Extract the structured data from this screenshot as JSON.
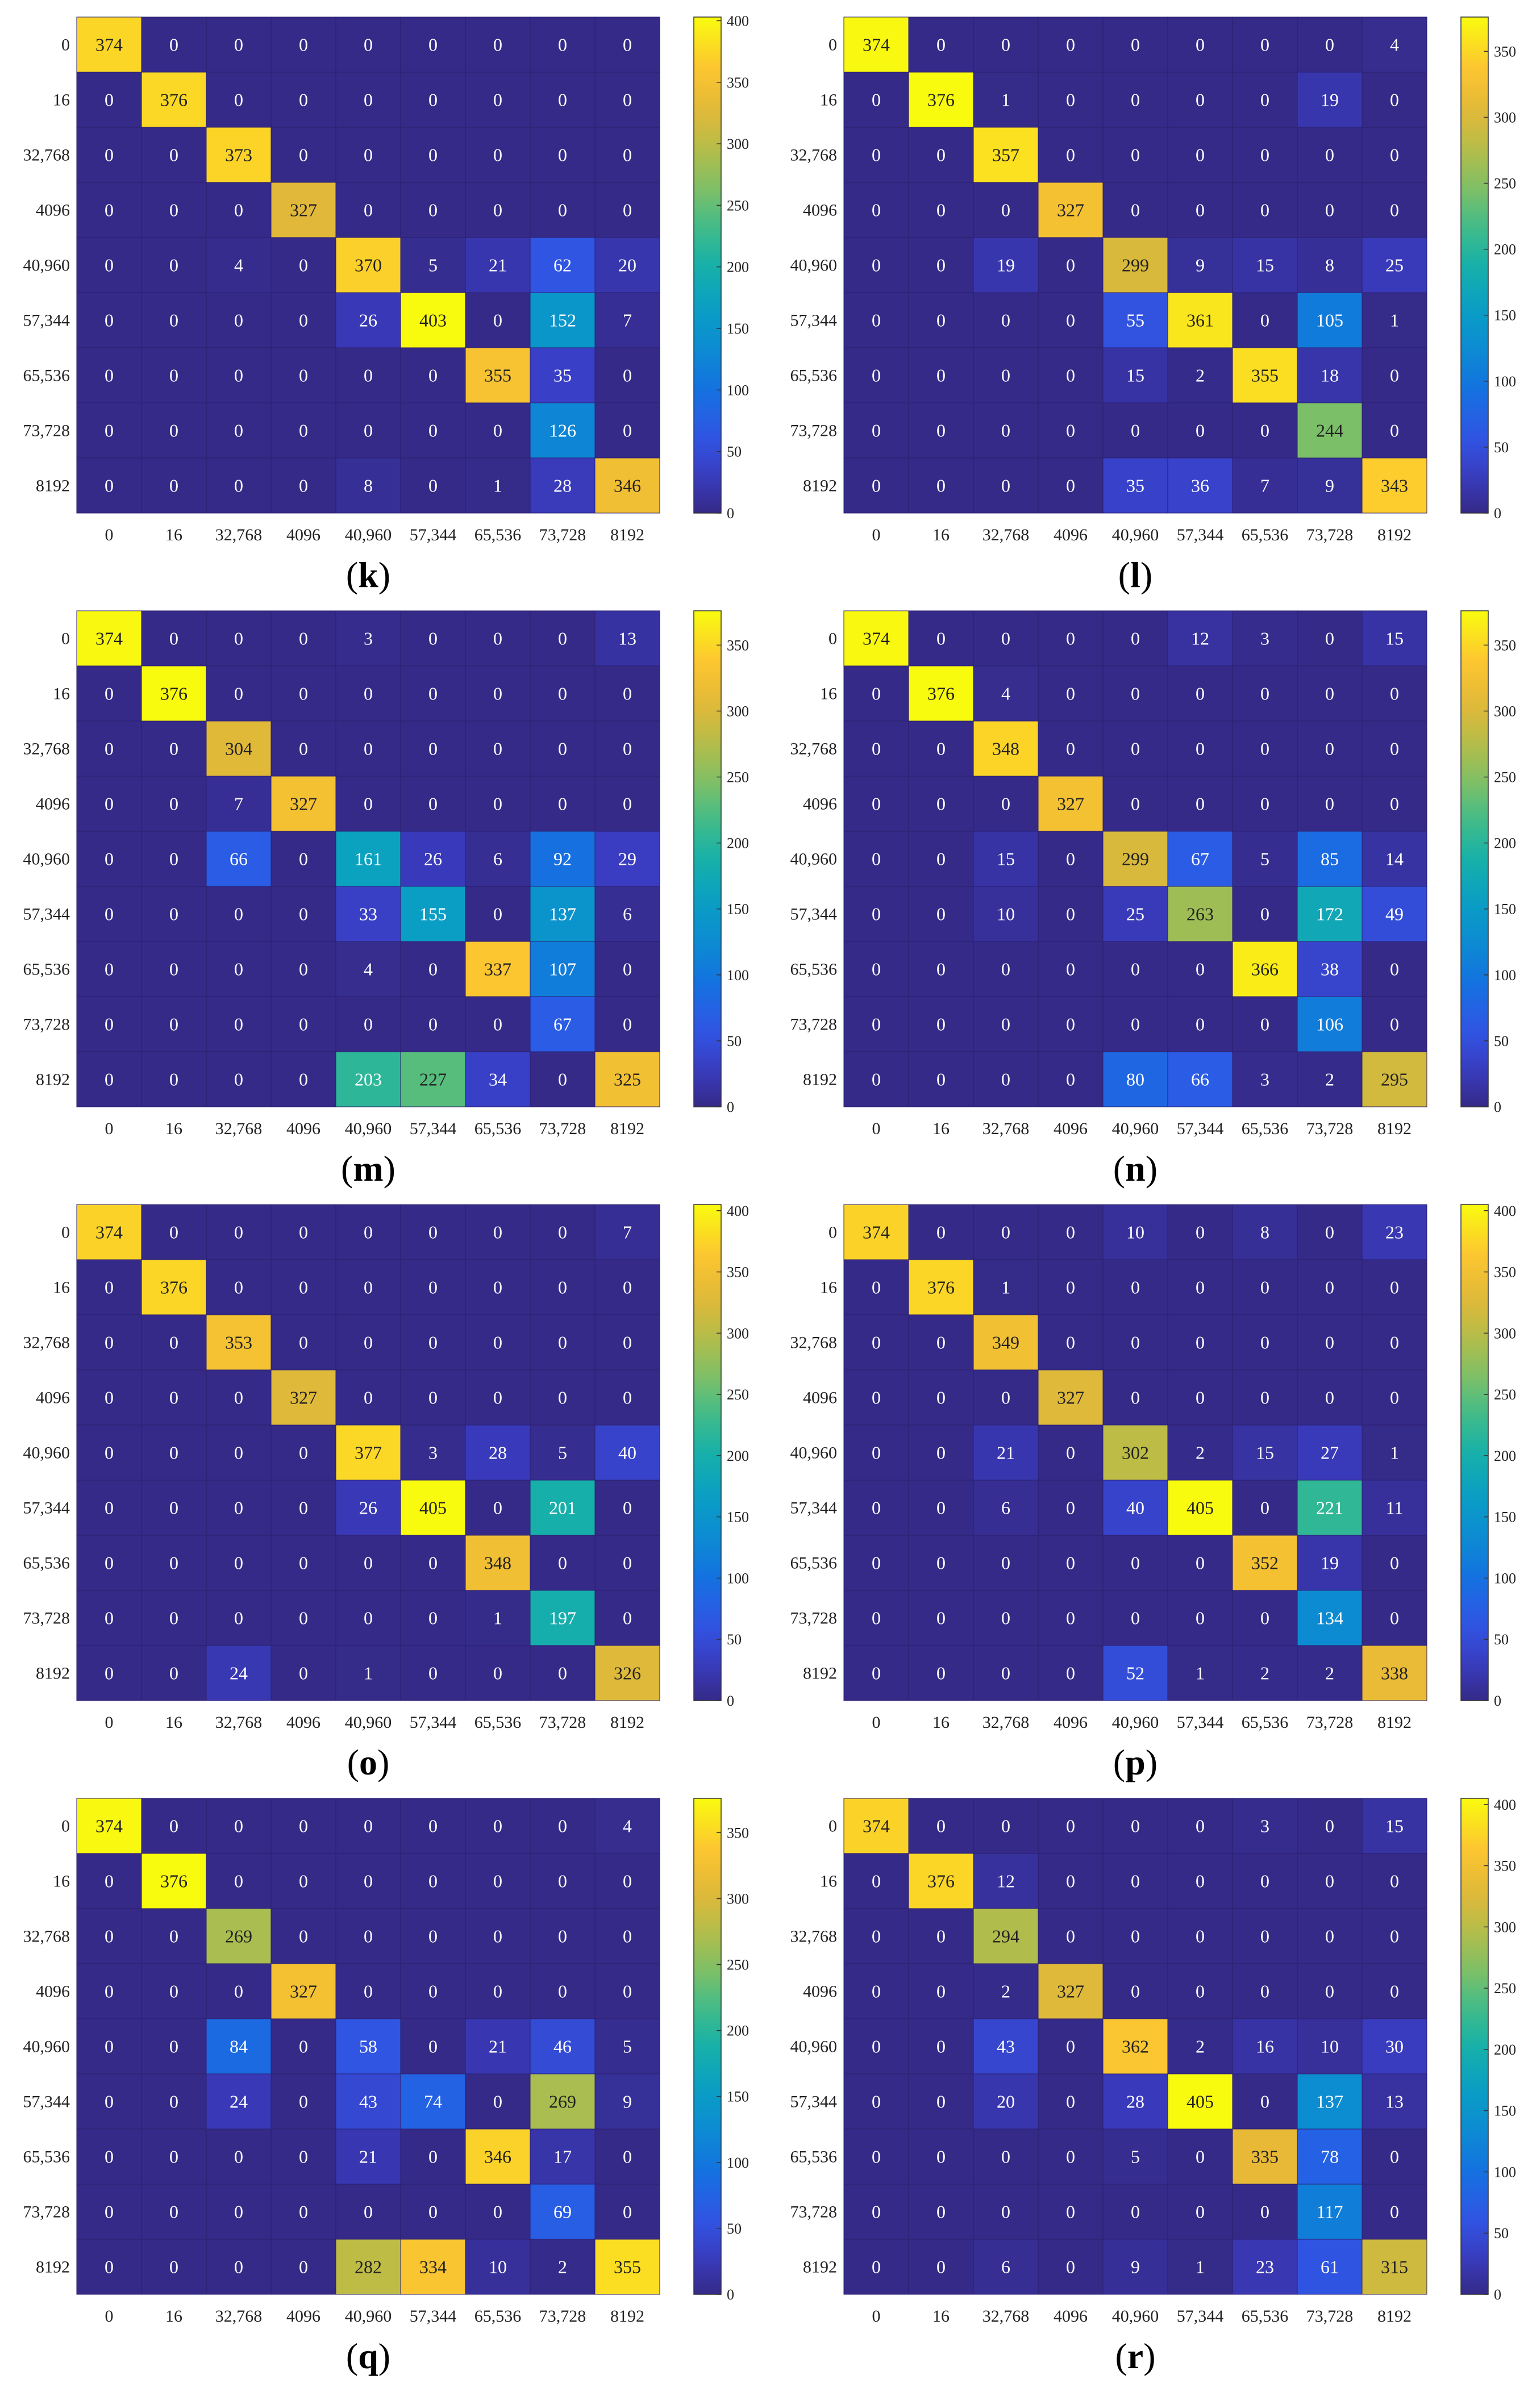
{
  "figure": {
    "panels": [
      "k",
      "l",
      "m",
      "n",
      "o",
      "p",
      "q",
      "r"
    ]
  },
  "chart_data": [
    {
      "type": "heatmap",
      "panel": "k",
      "caption_open": "(",
      "caption_letter": "k",
      "caption_close": ")",
      "row_labels": [
        "0",
        "16",
        "32,768",
        "4096",
        "40,960",
        "57,344",
        "65,536",
        "73,728",
        "8192"
      ],
      "col_labels": [
        "0",
        "16",
        "32,768",
        "4096",
        "40,960",
        "57,344",
        "65,536",
        "73,728",
        "8192"
      ],
      "matrix": [
        [
          374,
          0,
          0,
          0,
          0,
          0,
          0,
          0,
          0
        ],
        [
          0,
          376,
          0,
          0,
          0,
          0,
          0,
          0,
          0
        ],
        [
          0,
          0,
          373,
          0,
          0,
          0,
          0,
          0,
          0
        ],
        [
          0,
          0,
          0,
          327,
          0,
          0,
          0,
          0,
          0
        ],
        [
          0,
          0,
          4,
          0,
          370,
          5,
          21,
          62,
          20
        ],
        [
          0,
          0,
          0,
          0,
          26,
          403,
          0,
          152,
          7
        ],
        [
          0,
          0,
          0,
          0,
          0,
          0,
          355,
          35,
          0
        ],
        [
          0,
          0,
          0,
          0,
          0,
          0,
          0,
          126,
          0
        ],
        [
          0,
          0,
          0,
          0,
          8,
          0,
          1,
          28,
          346
        ]
      ],
      "colorbar_max": 403,
      "colorbar_ticks": [
        0,
        50,
        100,
        150,
        200,
        250,
        300,
        350,
        400
      ]
    },
    {
      "type": "heatmap",
      "panel": "l",
      "caption_open": "(",
      "caption_letter": "l",
      "caption_close": ")",
      "row_labels": [
        "0",
        "16",
        "32,768",
        "4096",
        "40,960",
        "57,344",
        "65,536",
        "73,728",
        "8192"
      ],
      "col_labels": [
        "0",
        "16",
        "32,768",
        "4096",
        "40,960",
        "57,344",
        "65,536",
        "73,728",
        "8192"
      ],
      "matrix": [
        [
          374,
          0,
          0,
          0,
          0,
          0,
          0,
          0,
          4
        ],
        [
          0,
          376,
          1,
          0,
          0,
          0,
          0,
          19,
          0
        ],
        [
          0,
          0,
          357,
          0,
          0,
          0,
          0,
          0,
          0
        ],
        [
          0,
          0,
          0,
          327,
          0,
          0,
          0,
          0,
          0
        ],
        [
          0,
          0,
          19,
          0,
          299,
          9,
          15,
          8,
          25
        ],
        [
          0,
          0,
          0,
          0,
          55,
          361,
          0,
          105,
          1
        ],
        [
          0,
          0,
          0,
          0,
          15,
          2,
          355,
          18,
          0
        ],
        [
          0,
          0,
          0,
          0,
          0,
          0,
          0,
          244,
          0
        ],
        [
          0,
          0,
          0,
          0,
          35,
          36,
          7,
          9,
          343
        ]
      ],
      "colorbar_max": 376,
      "colorbar_ticks": [
        0,
        50,
        100,
        150,
        200,
        250,
        300,
        350
      ]
    },
    {
      "type": "heatmap",
      "panel": "m",
      "caption_open": "(",
      "caption_letter": "m",
      "caption_close": ")",
      "row_labels": [
        "0",
        "16",
        "32,768",
        "4096",
        "40,960",
        "57,344",
        "65,536",
        "73,728",
        "8192"
      ],
      "col_labels": [
        "0",
        "16",
        "32,768",
        "4096",
        "40,960",
        "57,344",
        "65,536",
        "73,728",
        "8192"
      ],
      "matrix": [
        [
          374,
          0,
          0,
          0,
          3,
          0,
          0,
          0,
          13
        ],
        [
          0,
          376,
          0,
          0,
          0,
          0,
          0,
          0,
          0
        ],
        [
          0,
          0,
          304,
          0,
          0,
          0,
          0,
          0,
          0
        ],
        [
          0,
          0,
          7,
          327,
          0,
          0,
          0,
          0,
          0
        ],
        [
          0,
          0,
          66,
          0,
          161,
          26,
          6,
          92,
          29
        ],
        [
          0,
          0,
          0,
          0,
          33,
          155,
          0,
          137,
          6
        ],
        [
          0,
          0,
          0,
          0,
          4,
          0,
          337,
          107,
          0
        ],
        [
          0,
          0,
          0,
          0,
          0,
          0,
          0,
          67,
          0
        ],
        [
          0,
          0,
          0,
          0,
          203,
          227,
          34,
          0,
          325
        ]
      ],
      "colorbar_max": 376,
      "colorbar_ticks": [
        0,
        50,
        100,
        150,
        200,
        250,
        300,
        350
      ]
    },
    {
      "type": "heatmap",
      "panel": "n",
      "caption_open": "(",
      "caption_letter": "n",
      "caption_close": ")",
      "row_labels": [
        "0",
        "16",
        "32,768",
        "4096",
        "40,960",
        "57,344",
        "65,536",
        "73,728",
        "8192"
      ],
      "col_labels": [
        "0",
        "16",
        "32,768",
        "4096",
        "40,960",
        "57,344",
        "65,536",
        "73,728",
        "8192"
      ],
      "matrix": [
        [
          374,
          0,
          0,
          0,
          0,
          12,
          3,
          0,
          15
        ],
        [
          0,
          376,
          4,
          0,
          0,
          0,
          0,
          0,
          0
        ],
        [
          0,
          0,
          348,
          0,
          0,
          0,
          0,
          0,
          0
        ],
        [
          0,
          0,
          0,
          327,
          0,
          0,
          0,
          0,
          0
        ],
        [
          0,
          0,
          15,
          0,
          299,
          67,
          5,
          85,
          14
        ],
        [
          0,
          0,
          10,
          0,
          25,
          263,
          0,
          172,
          49
        ],
        [
          0,
          0,
          0,
          0,
          0,
          0,
          366,
          38,
          0
        ],
        [
          0,
          0,
          0,
          0,
          0,
          0,
          0,
          106,
          0
        ],
        [
          0,
          0,
          0,
          0,
          80,
          66,
          3,
          2,
          295
        ]
      ],
      "colorbar_max": 376,
      "colorbar_ticks": [
        0,
        50,
        100,
        150,
        200,
        250,
        300,
        350
      ]
    },
    {
      "type": "heatmap",
      "panel": "o",
      "caption_open": "(",
      "caption_letter": "o",
      "caption_close": ")",
      "row_labels": [
        "0",
        "16",
        "32,768",
        "4096",
        "40,960",
        "57,344",
        "65,536",
        "73,728",
        "8192"
      ],
      "col_labels": [
        "0",
        "16",
        "32,768",
        "4096",
        "40,960",
        "57,344",
        "65,536",
        "73,728",
        "8192"
      ],
      "matrix": [
        [
          374,
          0,
          0,
          0,
          0,
          0,
          0,
          0,
          7
        ],
        [
          0,
          376,
          0,
          0,
          0,
          0,
          0,
          0,
          0
        ],
        [
          0,
          0,
          353,
          0,
          0,
          0,
          0,
          0,
          0
        ],
        [
          0,
          0,
          0,
          327,
          0,
          0,
          0,
          0,
          0
        ],
        [
          0,
          0,
          0,
          0,
          377,
          3,
          28,
          5,
          40
        ],
        [
          0,
          0,
          0,
          0,
          26,
          405,
          0,
          201,
          0
        ],
        [
          0,
          0,
          0,
          0,
          0,
          0,
          348,
          0,
          0
        ],
        [
          0,
          0,
          0,
          0,
          0,
          0,
          1,
          197,
          0
        ],
        [
          0,
          0,
          24,
          0,
          1,
          0,
          0,
          0,
          326
        ]
      ],
      "colorbar_max": 405,
      "colorbar_ticks": [
        0,
        50,
        100,
        150,
        200,
        250,
        300,
        350,
        400
      ]
    },
    {
      "type": "heatmap",
      "panel": "p",
      "caption_open": "(",
      "caption_letter": "p",
      "caption_close": ")",
      "row_labels": [
        "0",
        "16",
        "32,768",
        "4096",
        "40,960",
        "57,344",
        "65,536",
        "73,728",
        "8192"
      ],
      "col_labels": [
        "0",
        "16",
        "32,768",
        "4096",
        "40,960",
        "57,344",
        "65,536",
        "73,728",
        "8192"
      ],
      "matrix": [
        [
          374,
          0,
          0,
          0,
          10,
          0,
          8,
          0,
          23
        ],
        [
          0,
          376,
          1,
          0,
          0,
          0,
          0,
          0,
          0
        ],
        [
          0,
          0,
          349,
          0,
          0,
          0,
          0,
          0,
          0
        ],
        [
          0,
          0,
          0,
          327,
          0,
          0,
          0,
          0,
          0
        ],
        [
          0,
          0,
          21,
          0,
          302,
          2,
          15,
          27,
          1
        ],
        [
          0,
          0,
          6,
          0,
          40,
          405,
          0,
          221,
          11
        ],
        [
          0,
          0,
          0,
          0,
          0,
          0,
          352,
          19,
          0
        ],
        [
          0,
          0,
          0,
          0,
          0,
          0,
          0,
          134,
          0
        ],
        [
          0,
          0,
          0,
          0,
          52,
          1,
          2,
          2,
          338
        ]
      ],
      "colorbar_max": 405,
      "colorbar_ticks": [
        0,
        50,
        100,
        150,
        200,
        250,
        300,
        350,
        400
      ]
    },
    {
      "type": "heatmap",
      "panel": "q",
      "caption_open": "(",
      "caption_letter": "q",
      "caption_close": ")",
      "row_labels": [
        "0",
        "16",
        "32,768",
        "4096",
        "40,960",
        "57,344",
        "65,536",
        "73,728",
        "8192"
      ],
      "col_labels": [
        "0",
        "16",
        "32,768",
        "4096",
        "40,960",
        "57,344",
        "65,536",
        "73,728",
        "8192"
      ],
      "matrix": [
        [
          374,
          0,
          0,
          0,
          0,
          0,
          0,
          0,
          4
        ],
        [
          0,
          376,
          0,
          0,
          0,
          0,
          0,
          0,
          0
        ],
        [
          0,
          0,
          269,
          0,
          0,
          0,
          0,
          0,
          0
        ],
        [
          0,
          0,
          0,
          327,
          0,
          0,
          0,
          0,
          0
        ],
        [
          0,
          0,
          84,
          0,
          58,
          0,
          21,
          46,
          5
        ],
        [
          0,
          0,
          24,
          0,
          43,
          74,
          0,
          269,
          9
        ],
        [
          0,
          0,
          0,
          0,
          21,
          0,
          346,
          17,
          0
        ],
        [
          0,
          0,
          0,
          0,
          0,
          0,
          0,
          69,
          0
        ],
        [
          0,
          0,
          0,
          0,
          282,
          334,
          10,
          2,
          355
        ]
      ],
      "colorbar_max": 376,
      "colorbar_ticks": [
        0,
        50,
        100,
        150,
        200,
        250,
        300,
        350
      ]
    },
    {
      "type": "heatmap",
      "panel": "r",
      "caption_open": "(",
      "caption_letter": "r",
      "caption_close": ")",
      "row_labels": [
        "0",
        "16",
        "32,768",
        "4096",
        "40,960",
        "57,344",
        "65,536",
        "73,728",
        "8192"
      ],
      "col_labels": [
        "0",
        "16",
        "32,768",
        "4096",
        "40,960",
        "57,344",
        "65,536",
        "73,728",
        "8192"
      ],
      "matrix": [
        [
          374,
          0,
          0,
          0,
          0,
          0,
          3,
          0,
          15
        ],
        [
          0,
          376,
          12,
          0,
          0,
          0,
          0,
          0,
          0
        ],
        [
          0,
          0,
          294,
          0,
          0,
          0,
          0,
          0,
          0
        ],
        [
          0,
          0,
          2,
          327,
          0,
          0,
          0,
          0,
          0
        ],
        [
          0,
          0,
          43,
          0,
          362,
          2,
          16,
          10,
          30
        ],
        [
          0,
          0,
          20,
          0,
          28,
          405,
          0,
          137,
          13
        ],
        [
          0,
          0,
          0,
          0,
          5,
          0,
          335,
          78,
          0
        ],
        [
          0,
          0,
          0,
          0,
          0,
          0,
          0,
          117,
          0
        ],
        [
          0,
          0,
          6,
          0,
          9,
          1,
          23,
          61,
          315
        ]
      ],
      "colorbar_max": 405,
      "colorbar_ticks": [
        0,
        50,
        100,
        150,
        200,
        250,
        300,
        350,
        400
      ]
    }
  ]
}
